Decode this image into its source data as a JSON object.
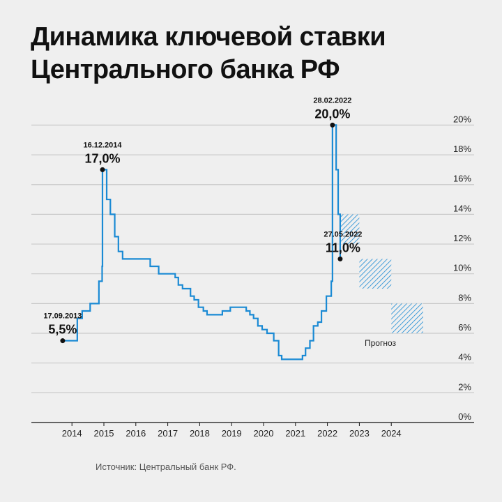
{
  "title_lines": [
    "Динамика ключевой ставки",
    "Центрального банка РФ"
  ],
  "source": "Источник: Центральный банк РФ.",
  "chart_data": {
    "type": "line",
    "step": true,
    "title": "Динамика ключевой ставки Центрального банка РФ",
    "xlabel": "",
    "ylabel": "",
    "ylim": [
      0,
      20
    ],
    "xlim": [
      2013,
      2025
    ],
    "grid": true,
    "y_axis_position": "right",
    "line_color": "#1a8ad4",
    "forecast_color": "#1a8ad4",
    "yticks": [
      "0%",
      "2%",
      "4%",
      "6%",
      "8%",
      "10%",
      "12%",
      "14%",
      "16%",
      "18%",
      "20%"
    ],
    "xticks": [
      "2014",
      "2015",
      "2016",
      "2017",
      "2018",
      "2019",
      "2020",
      "2021",
      "2022",
      "2023",
      "2024"
    ],
    "series": [
      {
        "points": [
          [
            "2013-09-13",
            5.5
          ],
          [
            "2014-03-03",
            7.0
          ],
          [
            "2014-04-28",
            7.5
          ],
          [
            "2014-07-28",
            8.0
          ],
          [
            "2014-11-05",
            9.5
          ],
          [
            "2014-12-12",
            10.5
          ],
          [
            "2014-12-16",
            17.0
          ],
          [
            "2015-02-02",
            15.0
          ],
          [
            "2015-03-16",
            14.0
          ],
          [
            "2015-05-05",
            12.5
          ],
          [
            "2015-06-16",
            11.5
          ],
          [
            "2015-08-03",
            11.0
          ],
          [
            "2016-06-14",
            10.5
          ],
          [
            "2016-09-19",
            10.0
          ],
          [
            "2017-03-27",
            9.75
          ],
          [
            "2017-05-02",
            9.25
          ],
          [
            "2017-06-19",
            9.0
          ],
          [
            "2017-09-18",
            8.5
          ],
          [
            "2017-10-30",
            8.25
          ],
          [
            "2017-12-18",
            7.75
          ],
          [
            "2018-02-12",
            7.5
          ],
          [
            "2018-03-26",
            7.25
          ],
          [
            "2018-09-17",
            7.5
          ],
          [
            "2018-12-17",
            7.75
          ],
          [
            "2019-06-17",
            7.5
          ],
          [
            "2019-07-29",
            7.25
          ],
          [
            "2019-09-09",
            7.0
          ],
          [
            "2019-10-28",
            6.5
          ],
          [
            "2019-12-16",
            6.25
          ],
          [
            "2020-02-10",
            6.0
          ],
          [
            "2020-04-27",
            5.5
          ],
          [
            "2020-06-22",
            4.5
          ],
          [
            "2020-07-27",
            4.25
          ],
          [
            "2021-03-22",
            4.5
          ],
          [
            "2021-04-26",
            5.0
          ],
          [
            "2021-06-15",
            5.5
          ],
          [
            "2021-07-26",
            6.5
          ],
          [
            "2021-09-13",
            6.75
          ],
          [
            "2021-10-25",
            7.5
          ],
          [
            "2021-12-20",
            8.5
          ],
          [
            "2022-02-14",
            9.5
          ],
          [
            "2022-02-28",
            20.0
          ],
          [
            "2022-04-11",
            17.0
          ],
          [
            "2022-05-04",
            14.0
          ],
          [
            "2022-05-27",
            11.0
          ]
        ],
        "end": "2022-06-01"
      }
    ],
    "forecast": {
      "label": "Прогноз",
      "ranges": [
        {
          "from": "2022-06-01",
          "to": "2023-01-01",
          "low": 12,
          "high": 14
        },
        {
          "from": "2023-01-01",
          "to": "2024-01-01",
          "low": 9,
          "high": 11
        },
        {
          "from": "2024-01-01",
          "to": "2025-01-01",
          "low": 6,
          "high": 8
        }
      ]
    },
    "annotations": [
      {
        "date": "17.09.2013",
        "value": "5,5%",
        "x": "2013-09-17",
        "y": 5.5
      },
      {
        "date": "16.12.2014",
        "value": "17,0%",
        "x": "2014-12-16",
        "y": 17.0
      },
      {
        "date": "28.02.2022",
        "value": "20,0%",
        "x": "2022-02-28",
        "y": 20.0
      },
      {
        "date": "27.05.2022",
        "value": "11,0%",
        "x": "2022-05-27",
        "y": 11.0
      }
    ]
  }
}
